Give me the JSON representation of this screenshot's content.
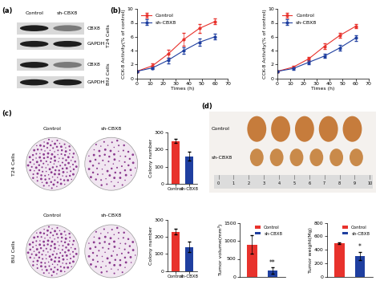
{
  "panel_labels": [
    "(a)",
    "(b)",
    "(c)",
    "(d)"
  ],
  "western_blot": {
    "columns": [
      "Control",
      "sh-CBX8"
    ],
    "groups": [
      {
        "cells": "T24 Cells",
        "rows": [
          "CBX8",
          "GAPDH"
        ]
      },
      {
        "cells": "BIU Cells",
        "rows": [
          "CBX8",
          "GAPDH"
        ]
      }
    ]
  },
  "colony_images": {
    "columns": [
      "Control",
      "sh-CBX8"
    ],
    "rows": [
      "T24 Cells",
      "BIU Cells"
    ]
  },
  "tumor_photo": {
    "rows": [
      "Control",
      "sh-CBX8"
    ],
    "ruler_labels": [
      "0",
      "1",
      "2",
      "3",
      "4",
      "5",
      "6",
      "7",
      "8",
      "9",
      "10"
    ]
  },
  "chart_data": [
    {
      "type": "line",
      "x": [
        0,
        12,
        24,
        36,
        48,
        60
      ],
      "series": [
        {
          "name": "Control",
          "color": "#e8322c",
          "marker": "o",
          "values": [
            1.0,
            1.8,
            3.5,
            5.6,
            7.2,
            8.2
          ],
          "errors": [
            0.1,
            0.3,
            0.6,
            0.9,
            0.6,
            0.4
          ]
        },
        {
          "name": "sh-CBX8",
          "color": "#1f3fa0",
          "marker": "o",
          "values": [
            1.0,
            1.5,
            2.6,
            4.0,
            5.2,
            6.0
          ],
          "errors": [
            0.1,
            0.2,
            0.4,
            0.5,
            0.5,
            0.4
          ]
        }
      ],
      "x_label": "Times (h)",
      "y_label": "CCK-8 Activity(% of control)",
      "xlim": [
        0,
        70
      ],
      "ylim": [
        0,
        10
      ],
      "xticks": [
        0,
        10,
        20,
        30,
        40,
        50,
        60,
        70
      ],
      "yticks": [
        0,
        2,
        4,
        6,
        8,
        10
      ],
      "legend": "upper left"
    },
    {
      "type": "line",
      "x": [
        0,
        12,
        24,
        36,
        48,
        60
      ],
      "series": [
        {
          "name": "Control",
          "color": "#e8322c",
          "marker": "o",
          "values": [
            1.0,
            1.6,
            2.8,
            4.6,
            6.2,
            7.5
          ],
          "errors": [
            0.1,
            0.2,
            0.3,
            0.4,
            0.4,
            0.3
          ]
        },
        {
          "name": "sh-CBX8",
          "color": "#1f3fa0",
          "marker": "o",
          "values": [
            1.0,
            1.4,
            2.3,
            3.2,
            4.4,
            5.8
          ],
          "errors": [
            0.1,
            0.2,
            0.3,
            0.3,
            0.4,
            0.4
          ]
        }
      ],
      "x_label": "Times (h)",
      "y_label": "CCK-8 Activity(% of control)",
      "xlim": [
        0,
        70
      ],
      "ylim": [
        0,
        10
      ],
      "xticks": [
        0,
        10,
        20,
        30,
        40,
        50,
        60,
        70
      ],
      "yticks": [
        0,
        2,
        4,
        6,
        8,
        10
      ],
      "legend": "upper left"
    },
    {
      "type": "bar",
      "categories": [
        "Control",
        "sh-CBX8"
      ],
      "values": [
        250,
        160
      ],
      "errors": [
        10,
        25
      ],
      "colors": [
        "#e8322c",
        "#1f3fa0"
      ],
      "y_label": "Colony number",
      "ylim": [
        0,
        300
      ],
      "yticks": [
        0,
        100,
        200,
        300
      ]
    },
    {
      "type": "bar",
      "categories": [
        "Control",
        "sh-CBX8"
      ],
      "values": [
        230,
        140
      ],
      "errors": [
        15,
        30
      ],
      "colors": [
        "#e8322c",
        "#1f3fa0"
      ],
      "y_label": "Colony number",
      "ylim": [
        0,
        300
      ],
      "yticks": [
        0,
        100,
        200,
        300
      ]
    },
    {
      "type": "bar",
      "series": [
        {
          "name": "Control",
          "color": "#e8322c",
          "values": [
            900
          ],
          "errors": [
            250
          ]
        },
        {
          "name": "sh-CBX8",
          "color": "#1f3fa0",
          "values": [
            170
          ],
          "errors": [
            90
          ]
        }
      ],
      "y_label": "Tumor volume(mm³)",
      "ylim": [
        0,
        1500
      ],
      "yticks": [
        0,
        500,
        1000,
        1500
      ],
      "legend": "upper right",
      "tick_labels": "y",
      "annotations": [
        {
          "text": "**",
          "series": "sh-CBX8"
        }
      ]
    },
    {
      "type": "bar",
      "series": [
        {
          "name": "Control",
          "color": "#e8322c",
          "values": [
            500
          ],
          "errors": [
            15
          ]
        },
        {
          "name": "sh-CBX8",
          "color": "#1f3fa0",
          "values": [
            310
          ],
          "errors": [
            60
          ]
        }
      ],
      "y_label": "Tumor weight(Mg)",
      "ylim": [
        0,
        800
      ],
      "yticks": [
        0,
        200,
        400,
        600,
        800
      ],
      "legend": "upper right",
      "tick_labels": "y",
      "annotations": [
        {
          "text": "*",
          "series": "sh-CBX8"
        }
      ]
    }
  ]
}
